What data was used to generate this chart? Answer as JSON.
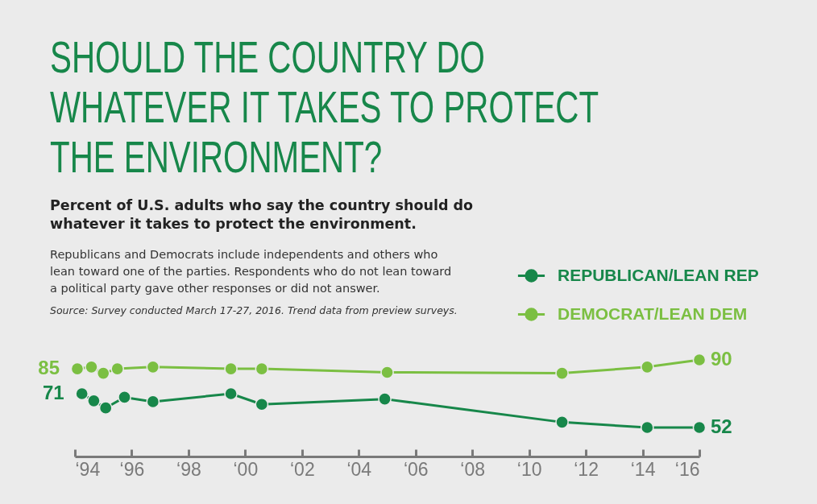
{
  "chart_data": {
    "type": "line",
    "title": "SHOULD THE COUNTRY DO WHATEVER IT TAKES TO PROTECT THE ENVIRONMENT?",
    "subtitle": "Percent of U.S. adults who say the country should do whatever it takes to protect the environment.",
    "annotations": [
      "Republicans and Democrats include independents and others who lean toward one of the parties. Respondents who do not lean toward a political party gave other responses or did not answer.",
      "Source: Survey conducted March 17-27, 2016. Trend data from preview surveys."
    ],
    "series": [
      {
        "name": "REPUBLICAN/LEAN REP",
        "color": "#17874a",
        "x": [
          "1994-04",
          "1994-09",
          "1995-02",
          "1995-10",
          "1996-10",
          "1999-07",
          "2000-08",
          "2004-12",
          "2011-03",
          "2014-03",
          "2016"
        ],
        "values": [
          71,
          67,
          63,
          69,
          66.5,
          71,
          65,
          68,
          55,
          52,
          52
        ],
        "value_labels": [
          "71",
          null,
          null,
          null,
          null,
          null,
          null,
          null,
          null,
          null,
          "52"
        ]
      },
      {
        "name": "DEMOCRAT/LEAN DEM",
        "color": "#7bbf42",
        "x": [
          "1994-02",
          "1994-08",
          "1995-01",
          "1995-07",
          "1996-10",
          "1999-07",
          "2000-08",
          "2005-01",
          "2011-03",
          "2014-03",
          "2016"
        ],
        "values": [
          85,
          86,
          82.5,
          85,
          86,
          85,
          85,
          83,
          82.5,
          86,
          90
        ],
        "value_labels": [
          "85",
          null,
          null,
          null,
          null,
          null,
          null,
          null,
          null,
          null,
          "90"
        ]
      }
    ],
    "xlim": [
      "1994",
      "2016"
    ],
    "xticks": [
      {
        "value": "1994",
        "label": "‘94"
      },
      {
        "value": "1996",
        "label": "‘96"
      },
      {
        "value": "1998",
        "label": "‘98"
      },
      {
        "value": "2000",
        "label": "‘00"
      },
      {
        "value": "2002",
        "label": "‘02"
      },
      {
        "value": "2004",
        "label": "‘04"
      },
      {
        "value": "2006",
        "label": "‘06"
      },
      {
        "value": "2008",
        "label": "‘08"
      },
      {
        "value": "2010",
        "label": "‘10"
      },
      {
        "value": "2012",
        "label": "‘12"
      },
      {
        "value": "2014",
        "label": "‘14"
      },
      {
        "value": "2016",
        "label": "‘16"
      }
    ],
    "tick_labels": "x",
    "grid": false,
    "legend": "top right",
    "marker": "circle",
    "line_style": "solid"
  }
}
